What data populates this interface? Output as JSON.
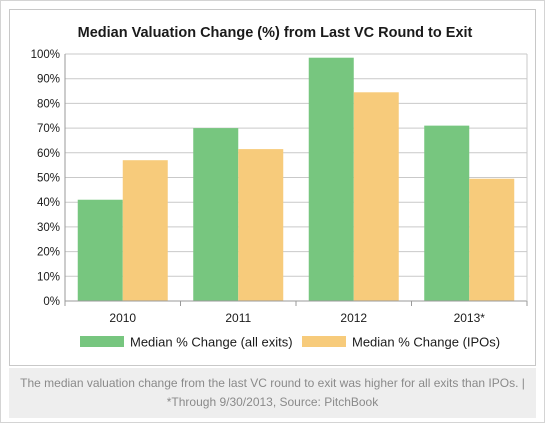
{
  "chart_data": {
    "type": "bar",
    "title": "Median Valuation Change (%) from Last VC Round to Exit",
    "categories": [
      "2010",
      "2011",
      "2012",
      "2013*"
    ],
    "series": [
      {
        "name": "Median % Change (all exits)",
        "values": [
          41,
          70,
          98.5,
          71
        ],
        "color": "#77c67f"
      },
      {
        "name": "Median % Change (IPOs)",
        "values": [
          57,
          61.5,
          84.5,
          49.5
        ],
        "color": "#f7cb7b"
      }
    ],
    "ylim": [
      0,
      100
    ],
    "yticks": [
      "0%",
      "10%",
      "20%",
      "30%",
      "40%",
      "50%",
      "60%",
      "70%",
      "80%",
      "90%",
      "100%"
    ],
    "grid": true,
    "legend_position": "bottom"
  },
  "caption": {
    "text": "The median valuation change from the last VC round to exit was higher for all exits than IPOs. | *Through 9/30/2013, Source: PitchBook"
  }
}
